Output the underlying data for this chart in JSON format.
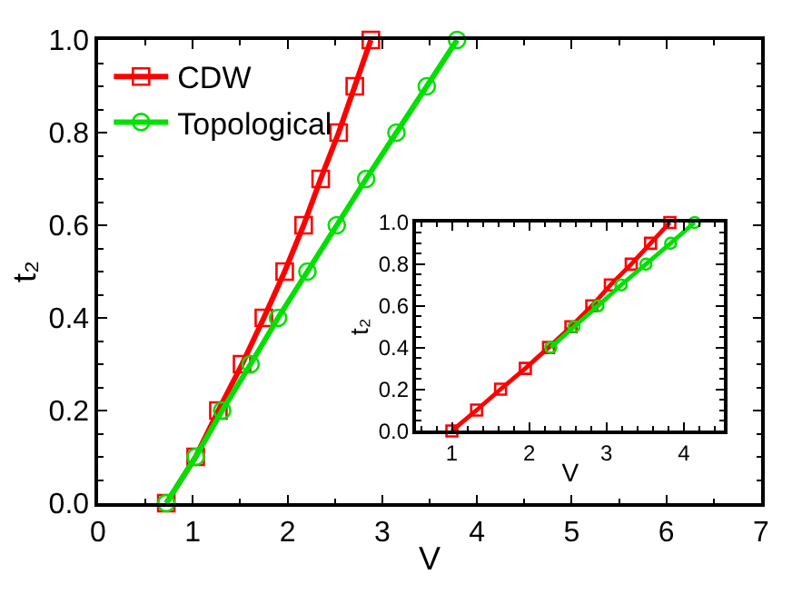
{
  "chart_data": [
    {
      "type": "line",
      "xlabel": "V",
      "ylabel": "t₂",
      "xlim": [
        0,
        7
      ],
      "xticks": [
        0,
        1,
        2,
        3,
        4,
        5,
        6,
        7
      ],
      "ylim": [
        0,
        1
      ],
      "yticks": [
        {
          "value": 0,
          "label": "0.0"
        },
        {
          "value": 0.2,
          "label": "0.2"
        },
        {
          "value": 0.4,
          "label": "0.4"
        },
        {
          "value": 0.6,
          "label": "0.6"
        },
        {
          "value": 0.8,
          "label": "0.8"
        },
        {
          "value": 1,
          "label": "1.0"
        }
      ],
      "legend": "top left",
      "series": [
        {
          "name": "CDW",
          "color": "#ff0000",
          "marker": "square",
          "x": [
            0.72,
            1.03,
            1.27,
            1.52,
            1.75,
            1.97,
            2.17,
            2.35,
            2.54,
            2.71,
            2.88
          ],
          "values": [
            0,
            0.1,
            0.2,
            0.3,
            0.4,
            0.5,
            0.6,
            0.7,
            0.8,
            0.9,
            1.0
          ]
        },
        {
          "name": "Topological",
          "color": "#00e000",
          "marker": "circle",
          "x": [
            0.72,
            1.03,
            1.31,
            1.61,
            1.9,
            2.21,
            2.52,
            2.83,
            3.15,
            3.47,
            3.79
          ],
          "values": [
            0,
            0.1,
            0.2,
            0.3,
            0.4,
            0.5,
            0.6,
            0.7,
            0.8,
            0.9,
            1.0
          ]
        }
      ]
    },
    {
      "type": "line",
      "xlabel": "V",
      "ylabel": "t₂",
      "xlim": [
        0.54,
        4.52
      ],
      "xticks": [
        1,
        2,
        3,
        4
      ],
      "ylim": [
        0,
        1
      ],
      "yticks": [
        {
          "value": 0,
          "label": "0.0"
        },
        {
          "value": 0.2,
          "label": "0.2"
        },
        {
          "value": 0.4,
          "label": "0.4"
        },
        {
          "value": 0.6,
          "label": "0.6"
        },
        {
          "value": 0.8,
          "label": "0.8"
        },
        {
          "value": 1,
          "label": "1.0"
        }
      ],
      "legend": false,
      "series": [
        {
          "color": "#ff0000",
          "marker": "square",
          "x": [
            1.0,
            1.32,
            1.63,
            1.95,
            2.25,
            2.54,
            2.81,
            3.05,
            3.32,
            3.57,
            3.82
          ],
          "values": [
            0,
            0.1,
            0.2,
            0.3,
            0.4,
            0.5,
            0.6,
            0.7,
            0.8,
            0.9,
            1.0
          ]
        },
        {
          "color": "#00e000",
          "marker": "circle",
          "x": [
            2.28,
            2.58,
            2.89,
            3.19,
            3.51,
            3.83,
            4.14
          ],
          "values": [
            0.4,
            0.5,
            0.6,
            0.7,
            0.8,
            0.9,
            1.0
          ]
        }
      ]
    }
  ]
}
